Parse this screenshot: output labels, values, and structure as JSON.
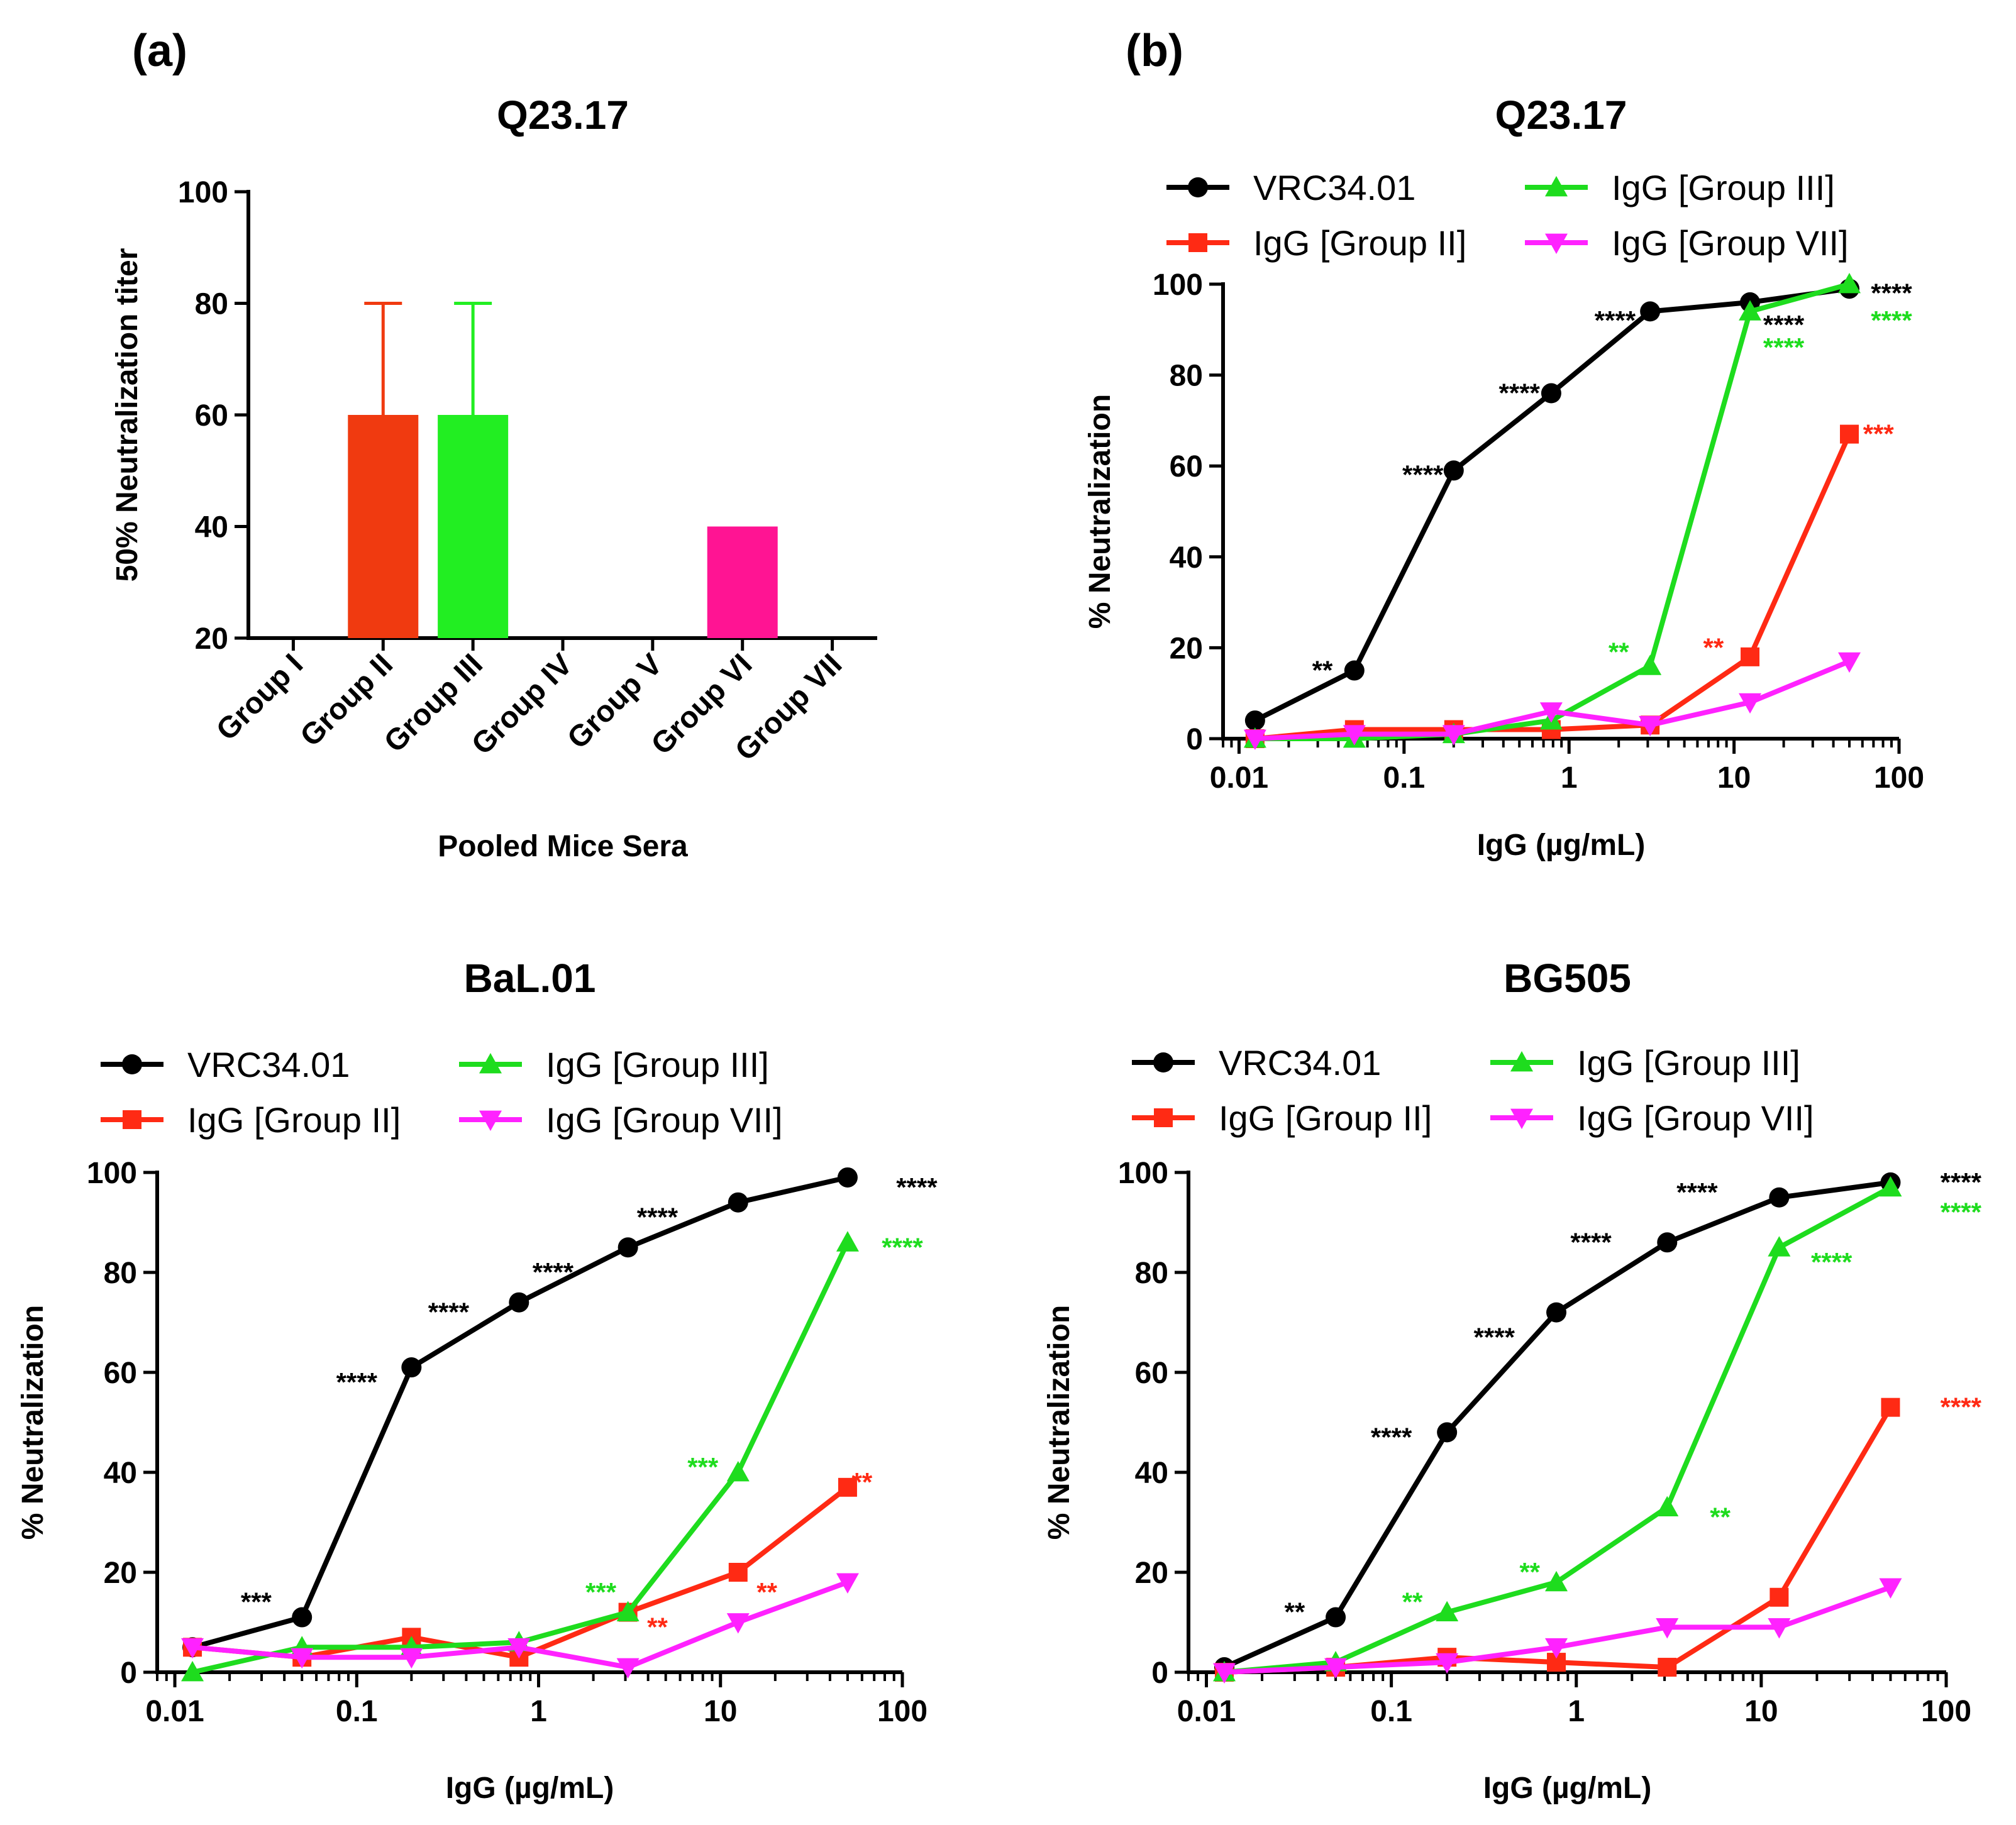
{
  "panel_labels": [
    "(a)",
    "(b)"
  ],
  "colors": {
    "black": "#000000",
    "red": "#ff2a14",
    "green": "#1edc1e",
    "magenta": "#ff22ff",
    "bar_red": "#f03a10",
    "bar_green": "#22ee22",
    "bar_magenta": "#ff1493"
  },
  "chart_data": [
    {
      "type": "bar",
      "title": "Q23.17",
      "xlabel": "Pooled Mice Sera",
      "ylabel": "50% Neutralization titer",
      "ylim": [
        20,
        100
      ],
      "yticks": [
        "20",
        "40",
        "60",
        "80",
        "100"
      ],
      "categories": [
        "Group I",
        "Group II",
        "Group III",
        "Group IV",
        "Group V",
        "Group VI",
        "Group VII"
      ],
      "values": [
        null,
        60,
        60,
        null,
        null,
        40,
        null
      ],
      "error_upper": [
        null,
        80,
        80,
        null,
        null,
        null,
        null
      ],
      "bar_colors": [
        "",
        "#f03a10",
        "#22ee22",
        "",
        "",
        "#ff1493",
        ""
      ]
    },
    {
      "type": "line",
      "title": "Q23.17",
      "xlabel": "IgG (µg/mL)",
      "ylabel": "% Neutralization",
      "xscale": "log",
      "xlim": [
        0.008,
        100
      ],
      "ylim": [
        0,
        100
      ],
      "xticks": [
        "0.01",
        "0.1",
        "1",
        "10",
        "100"
      ],
      "yticks": [
        "0",
        "20",
        "40",
        "60",
        "80",
        "100"
      ],
      "x": [
        0.0125,
        0.05,
        0.2,
        0.78,
        3.1,
        12.5,
        50
      ],
      "legend": [
        "VRC34.01",
        "IgG [Group III]",
        "IgG [Group II]",
        "IgG [Group VII]"
      ],
      "series": [
        {
          "name": "VRC34.01",
          "color": "#000000",
          "marker": "circle",
          "values": [
            4,
            15,
            59,
            76,
            94,
            96,
            99
          ]
        },
        {
          "name": "IgG [Group II]",
          "color": "#ff2a14",
          "marker": "square",
          "values": [
            0,
            2,
            2,
            2,
            3,
            18,
            67
          ]
        },
        {
          "name": "IgG [Group III]",
          "color": "#1edc1e",
          "marker": "triangle",
          "values": [
            0,
            0,
            1,
            4,
            16,
            94,
            100
          ]
        },
        {
          "name": "IgG [Group VII]",
          "color": "#ff22ff",
          "marker": "triangle-down",
          "values": [
            0,
            1,
            1,
            6,
            3,
            8,
            17
          ]
        }
      ],
      "annotations": [
        {
          "text": "**",
          "x": 0.032,
          "y": 15,
          "color": "#000000"
        },
        {
          "text": "****",
          "x": 0.13,
          "y": 58,
          "color": "#000000"
        },
        {
          "text": "****",
          "x": 0.5,
          "y": 76,
          "color": "#000000"
        },
        {
          "text": "****",
          "x": 1.9,
          "y": 92,
          "color": "#000000"
        },
        {
          "text": "****",
          "x": 20,
          "y": 91,
          "color": "#000000"
        },
        {
          "text": "****",
          "x": 90,
          "y": 98,
          "color": "#000000"
        },
        {
          "text": "****",
          "x": 20,
          "y": 86,
          "color": "#1edc1e"
        },
        {
          "text": "****",
          "x": 90,
          "y": 92,
          "color": "#1edc1e"
        },
        {
          "text": "**",
          "x": 2,
          "y": 19,
          "color": "#1edc1e"
        },
        {
          "text": "**",
          "x": 7.5,
          "y": 20,
          "color": "#ff2a14"
        },
        {
          "text": "***",
          "x": 75,
          "y": 67,
          "color": "#ff2a14"
        }
      ]
    },
    {
      "type": "line",
      "title": "BaL.01",
      "xlabel": "IgG (µg/mL)",
      "ylabel": "% Neutralization",
      "xscale": "log",
      "xlim": [
        0.008,
        100
      ],
      "ylim": [
        0,
        100
      ],
      "xticks": [
        "0.01",
        "0.1",
        "1",
        "10",
        "100"
      ],
      "yticks": [
        "0",
        "20",
        "40",
        "60",
        "80",
        "100"
      ],
      "x": [
        0.0125,
        0.05,
        0.2,
        0.78,
        3.1,
        12.5,
        50
      ],
      "legend": [
        "VRC34.01",
        "IgG [Group III]",
        "IgG [Group II]",
        "IgG [Group VII]"
      ],
      "series": [
        {
          "name": "VRC34.01",
          "color": "#000000",
          "marker": "circle",
          "values": [
            5,
            11,
            61,
            74,
            85,
            94,
            99
          ]
        },
        {
          "name": "IgG [Group II]",
          "color": "#ff2a14",
          "marker": "square",
          "values": [
            5,
            3,
            7,
            3,
            12,
            20,
            37
          ]
        },
        {
          "name": "IgG [Group III]",
          "color": "#1edc1e",
          "marker": "triangle",
          "values": [
            0,
            5,
            5,
            6,
            12,
            40,
            86
          ]
        },
        {
          "name": "IgG [Group VII]",
          "color": "#ff22ff",
          "marker": "triangle-down",
          "values": [
            5,
            3,
            3,
            5,
            1,
            10,
            18
          ]
        }
      ],
      "annotations": [
        {
          "text": "***",
          "x": 0.028,
          "y": 14,
          "color": "#000000"
        },
        {
          "text": "****",
          "x": 0.1,
          "y": 58,
          "color": "#000000"
        },
        {
          "text": "****",
          "x": 0.32,
          "y": 72,
          "color": "#000000"
        },
        {
          "text": "****",
          "x": 1.2,
          "y": 80,
          "color": "#000000"
        },
        {
          "text": "****",
          "x": 4.5,
          "y": 91,
          "color": "#000000"
        },
        {
          "text": "****",
          "x": 120,
          "y": 97,
          "color": "#000000"
        },
        {
          "text": "****",
          "x": 100,
          "y": 85,
          "color": "#1edc1e"
        },
        {
          "text": "***",
          "x": 8,
          "y": 41,
          "color": "#1edc1e"
        },
        {
          "text": "***",
          "x": 2.2,
          "y": 16,
          "color": "#1edc1e"
        },
        {
          "text": "**",
          "x": 60,
          "y": 38,
          "color": "#ff2a14"
        },
        {
          "text": "**",
          "x": 18,
          "y": 16,
          "color": "#ff2a14"
        },
        {
          "text": "**",
          "x": 4.5,
          "y": 9,
          "color": "#ff2a14"
        }
      ]
    },
    {
      "type": "line",
      "title": "BG505",
      "xlabel": "IgG (µg/mL)",
      "ylabel": "% Neutralization",
      "xscale": "log",
      "xlim": [
        0.008,
        100
      ],
      "ylim": [
        0,
        100
      ],
      "xticks": [
        "0.01",
        "0.1",
        "1",
        "10",
        "100"
      ],
      "yticks": [
        "0",
        "20",
        "40",
        "60",
        "80",
        "100"
      ],
      "x": [
        0.0125,
        0.05,
        0.2,
        0.78,
        3.1,
        12.5,
        50
      ],
      "legend": [
        "VRC34.01",
        "IgG [Group III]",
        "IgG [Group II]",
        "IgG [Group VII]"
      ],
      "series": [
        {
          "name": "VRC34.01",
          "color": "#000000",
          "marker": "circle",
          "values": [
            1,
            11,
            48,
            72,
            86,
            95,
            98
          ]
        },
        {
          "name": "IgG [Group II]",
          "color": "#ff2a14",
          "marker": "square",
          "values": [
            0,
            1,
            3,
            2,
            1,
            15,
            53
          ]
        },
        {
          "name": "IgG [Group III]",
          "color": "#1edc1e",
          "marker": "triangle",
          "values": [
            0,
            2,
            12,
            18,
            33,
            85,
            97
          ]
        },
        {
          "name": "IgG [Group VII]",
          "color": "#ff22ff",
          "marker": "triangle-down",
          "values": [
            0,
            1,
            2,
            5,
            9,
            9,
            17
          ]
        }
      ],
      "annotations": [
        {
          "text": "**",
          "x": 0.03,
          "y": 12,
          "color": "#000000"
        },
        {
          "text": "****",
          "x": 0.1,
          "y": 47,
          "color": "#000000"
        },
        {
          "text": "****",
          "x": 0.36,
          "y": 67,
          "color": "#000000"
        },
        {
          "text": "****",
          "x": 1.2,
          "y": 86,
          "color": "#000000"
        },
        {
          "text": "****",
          "x": 4.5,
          "y": 96,
          "color": "#000000"
        },
        {
          "text": "****",
          "x": 120,
          "y": 98,
          "color": "#000000"
        },
        {
          "text": "****",
          "x": 120,
          "y": 92,
          "color": "#1edc1e"
        },
        {
          "text": "****",
          "x": 24,
          "y": 82,
          "color": "#1edc1e"
        },
        {
          "text": "**",
          "x": 6,
          "y": 31,
          "color": "#1edc1e"
        },
        {
          "text": "**",
          "x": 0.56,
          "y": 20,
          "color": "#1edc1e"
        },
        {
          "text": "**",
          "x": 0.13,
          "y": 14,
          "color": "#1edc1e"
        },
        {
          "text": "****",
          "x": 120,
          "y": 53,
          "color": "#ff2a14"
        }
      ]
    }
  ]
}
